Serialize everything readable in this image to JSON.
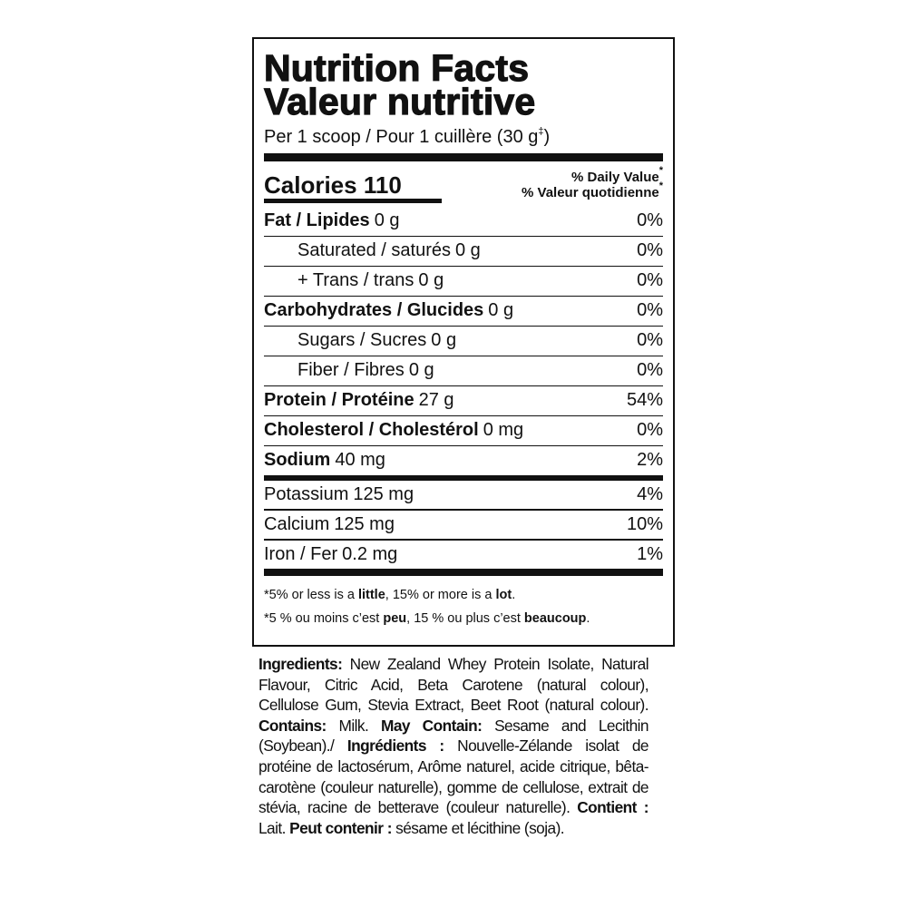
{
  "title": [
    "Nutrition Facts",
    "Valeur nutritive"
  ],
  "serving": {
    "text": "Per 1 scoop / Pour 1 cuillère (30 g",
    "mark": "‡",
    "close": ")"
  },
  "calories": {
    "label": "Calories",
    "amount": "110"
  },
  "daily_value": {
    "lines": [
      "% Daily Value",
      "% Valeur quotidienne"
    ],
    "mark": "*"
  },
  "rows": [
    {
      "nutrient": "Fat / Lipides",
      "amount": "0 g",
      "dv": "0%"
    },
    {
      "nutrient": "Saturated / saturés",
      "amount": "0 g",
      "dv": "0%"
    },
    {
      "nutrient": "+ Trans / trans",
      "amount": "0 g",
      "dv": "0%"
    },
    {
      "nutrient": "Carbohydrates / Glucides",
      "amount": "0 g",
      "dv": "0%"
    },
    {
      "nutrient": "Sugars / Sucres",
      "amount": "0 g",
      "dv": "0%"
    },
    {
      "nutrient": "Fiber / Fibres",
      "amount": "0 g",
      "dv": "0%"
    },
    {
      "nutrient": "Protein / Protéine",
      "amount": "27 g",
      "dv": "54%"
    },
    {
      "nutrient": "Cholesterol / Cholestérol",
      "amount": "0 mg",
      "dv": "0%"
    },
    {
      "nutrient": "Sodium",
      "amount": "40 mg",
      "dv": "2%"
    },
    {
      "nutrient": "Potassium",
      "amount": "125 mg",
      "dv": "4%"
    },
    {
      "nutrient": "Calcium",
      "amount": "125 mg",
      "dv": "10%"
    },
    {
      "nutrient": "Iron / Fer",
      "amount": "0.2 mg",
      "dv": "1%"
    }
  ],
  "footnotes": [
    [
      "*5% or less is a ",
      "little",
      ", 15% or more is a ",
      "lot",
      "."
    ],
    [
      "*5 % ou moins c’est ",
      "peu",
      ", 15 % ou plus c’est ",
      "beaucoup",
      "."
    ]
  ],
  "ingredients": [
    "Ingredients:",
    " New Zealand Whey Protein Isolate, Natural Flavour, Citric Acid, Beta Carotene (natural colour), Cellulose Gum, Stevia Extract, Beet Root (natural colour). ",
    "Contains:",
    " Milk. ",
    "May Contain:",
    " Sesame and Lecithin (Soybean)./ ",
    "Ingrédients :",
    " Nouvelle-Zélande isolat de protéine de lactosérum, Arôme naturel, acide citrique, bêta-carotène (couleur naturelle), gomme de cellulose, extrait de stévia, racine de betterave (couleur naturelle). ",
    "Contient :",
    " Lait. ",
    "Peut contenir :",
    " sésame et lécithine (soja)."
  ]
}
